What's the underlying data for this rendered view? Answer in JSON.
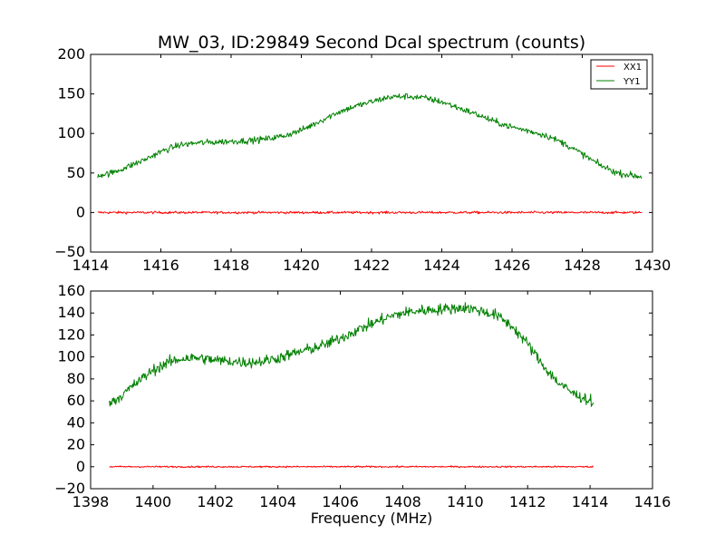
{
  "figure": {
    "title": "MW_03, ID:29849 Second Dcal spectrum (counts)",
    "xlabel": "Frequency (MHz)"
  },
  "chart_data": [
    {
      "type": "line",
      "xlim": [
        1414,
        1430
      ],
      "ylim": [
        -50,
        200
      ],
      "xticks": [
        1414,
        1416,
        1418,
        1420,
        1422,
        1424,
        1426,
        1428,
        1430
      ],
      "yticks": [
        -50,
        0,
        50,
        100,
        150,
        200
      ],
      "grid": false,
      "legend": "top-right",
      "noisy": true,
      "series": [
        {
          "name": "XX1",
          "color": "#ff0000",
          "x": [
            1414.2,
            1429.7
          ],
          "y": [
            0,
            0
          ],
          "noise": 1.5
        },
        {
          "name": "YY1",
          "color": "#008000",
          "x": [
            1414.2,
            1414.6,
            1415.0,
            1415.5,
            1416.0,
            1416.5,
            1417.0,
            1417.5,
            1418.0,
            1418.5,
            1419.0,
            1419.5,
            1420.0,
            1420.5,
            1421.0,
            1421.5,
            1422.0,
            1422.5,
            1423.0,
            1423.5,
            1424.0,
            1424.5,
            1425.0,
            1425.5,
            1426.0,
            1426.5,
            1427.0,
            1427.5,
            1428.0,
            1428.5,
            1429.0,
            1429.7
          ],
          "y": [
            47,
            50,
            57,
            66,
            77,
            85,
            88,
            89,
            90,
            91,
            93,
            97,
            104,
            115,
            126,
            134,
            140,
            146,
            147,
            145,
            140,
            132,
            124,
            115,
            108,
            103,
            97,
            87,
            74,
            60,
            50,
            45
          ],
          "noise": 4
        }
      ]
    },
    {
      "type": "line",
      "xlim": [
        1398,
        1416
      ],
      "ylim": [
        -20,
        160
      ],
      "xticks": [
        1398,
        1400,
        1402,
        1404,
        1406,
        1408,
        1410,
        1412,
        1414,
        1416
      ],
      "yticks": [
        -20,
        0,
        20,
        40,
        60,
        80,
        100,
        120,
        140,
        160
      ],
      "grid": false,
      "noisy": true,
      "series": [
        {
          "color": "#ff0000",
          "x": [
            1398.6,
            1414.1
          ],
          "y": [
            0,
            0
          ],
          "noise": 0.7
        },
        {
          "color": "#008000",
          "x": [
            1398.6,
            1399.0,
            1399.5,
            1400.0,
            1400.5,
            1401.0,
            1401.5,
            1402.0,
            1402.5,
            1403.0,
            1403.5,
            1404.0,
            1404.5,
            1405.0,
            1405.5,
            1406.0,
            1406.5,
            1407.0,
            1407.5,
            1408.0,
            1408.5,
            1409.0,
            1409.5,
            1410.0,
            1410.5,
            1411.0,
            1411.5,
            1412.0,
            1412.5,
            1413.0,
            1413.5,
            1414.1
          ],
          "y": [
            58,
            65,
            77,
            88,
            95,
            99,
            99,
            97,
            96,
            95,
            96,
            99,
            103,
            107,
            111,
            117,
            124,
            130,
            136,
            140,
            142,
            143,
            144,
            145,
            142,
            138,
            128,
            112,
            92,
            76,
            66,
            59
          ],
          "noise": 5
        }
      ]
    }
  ]
}
